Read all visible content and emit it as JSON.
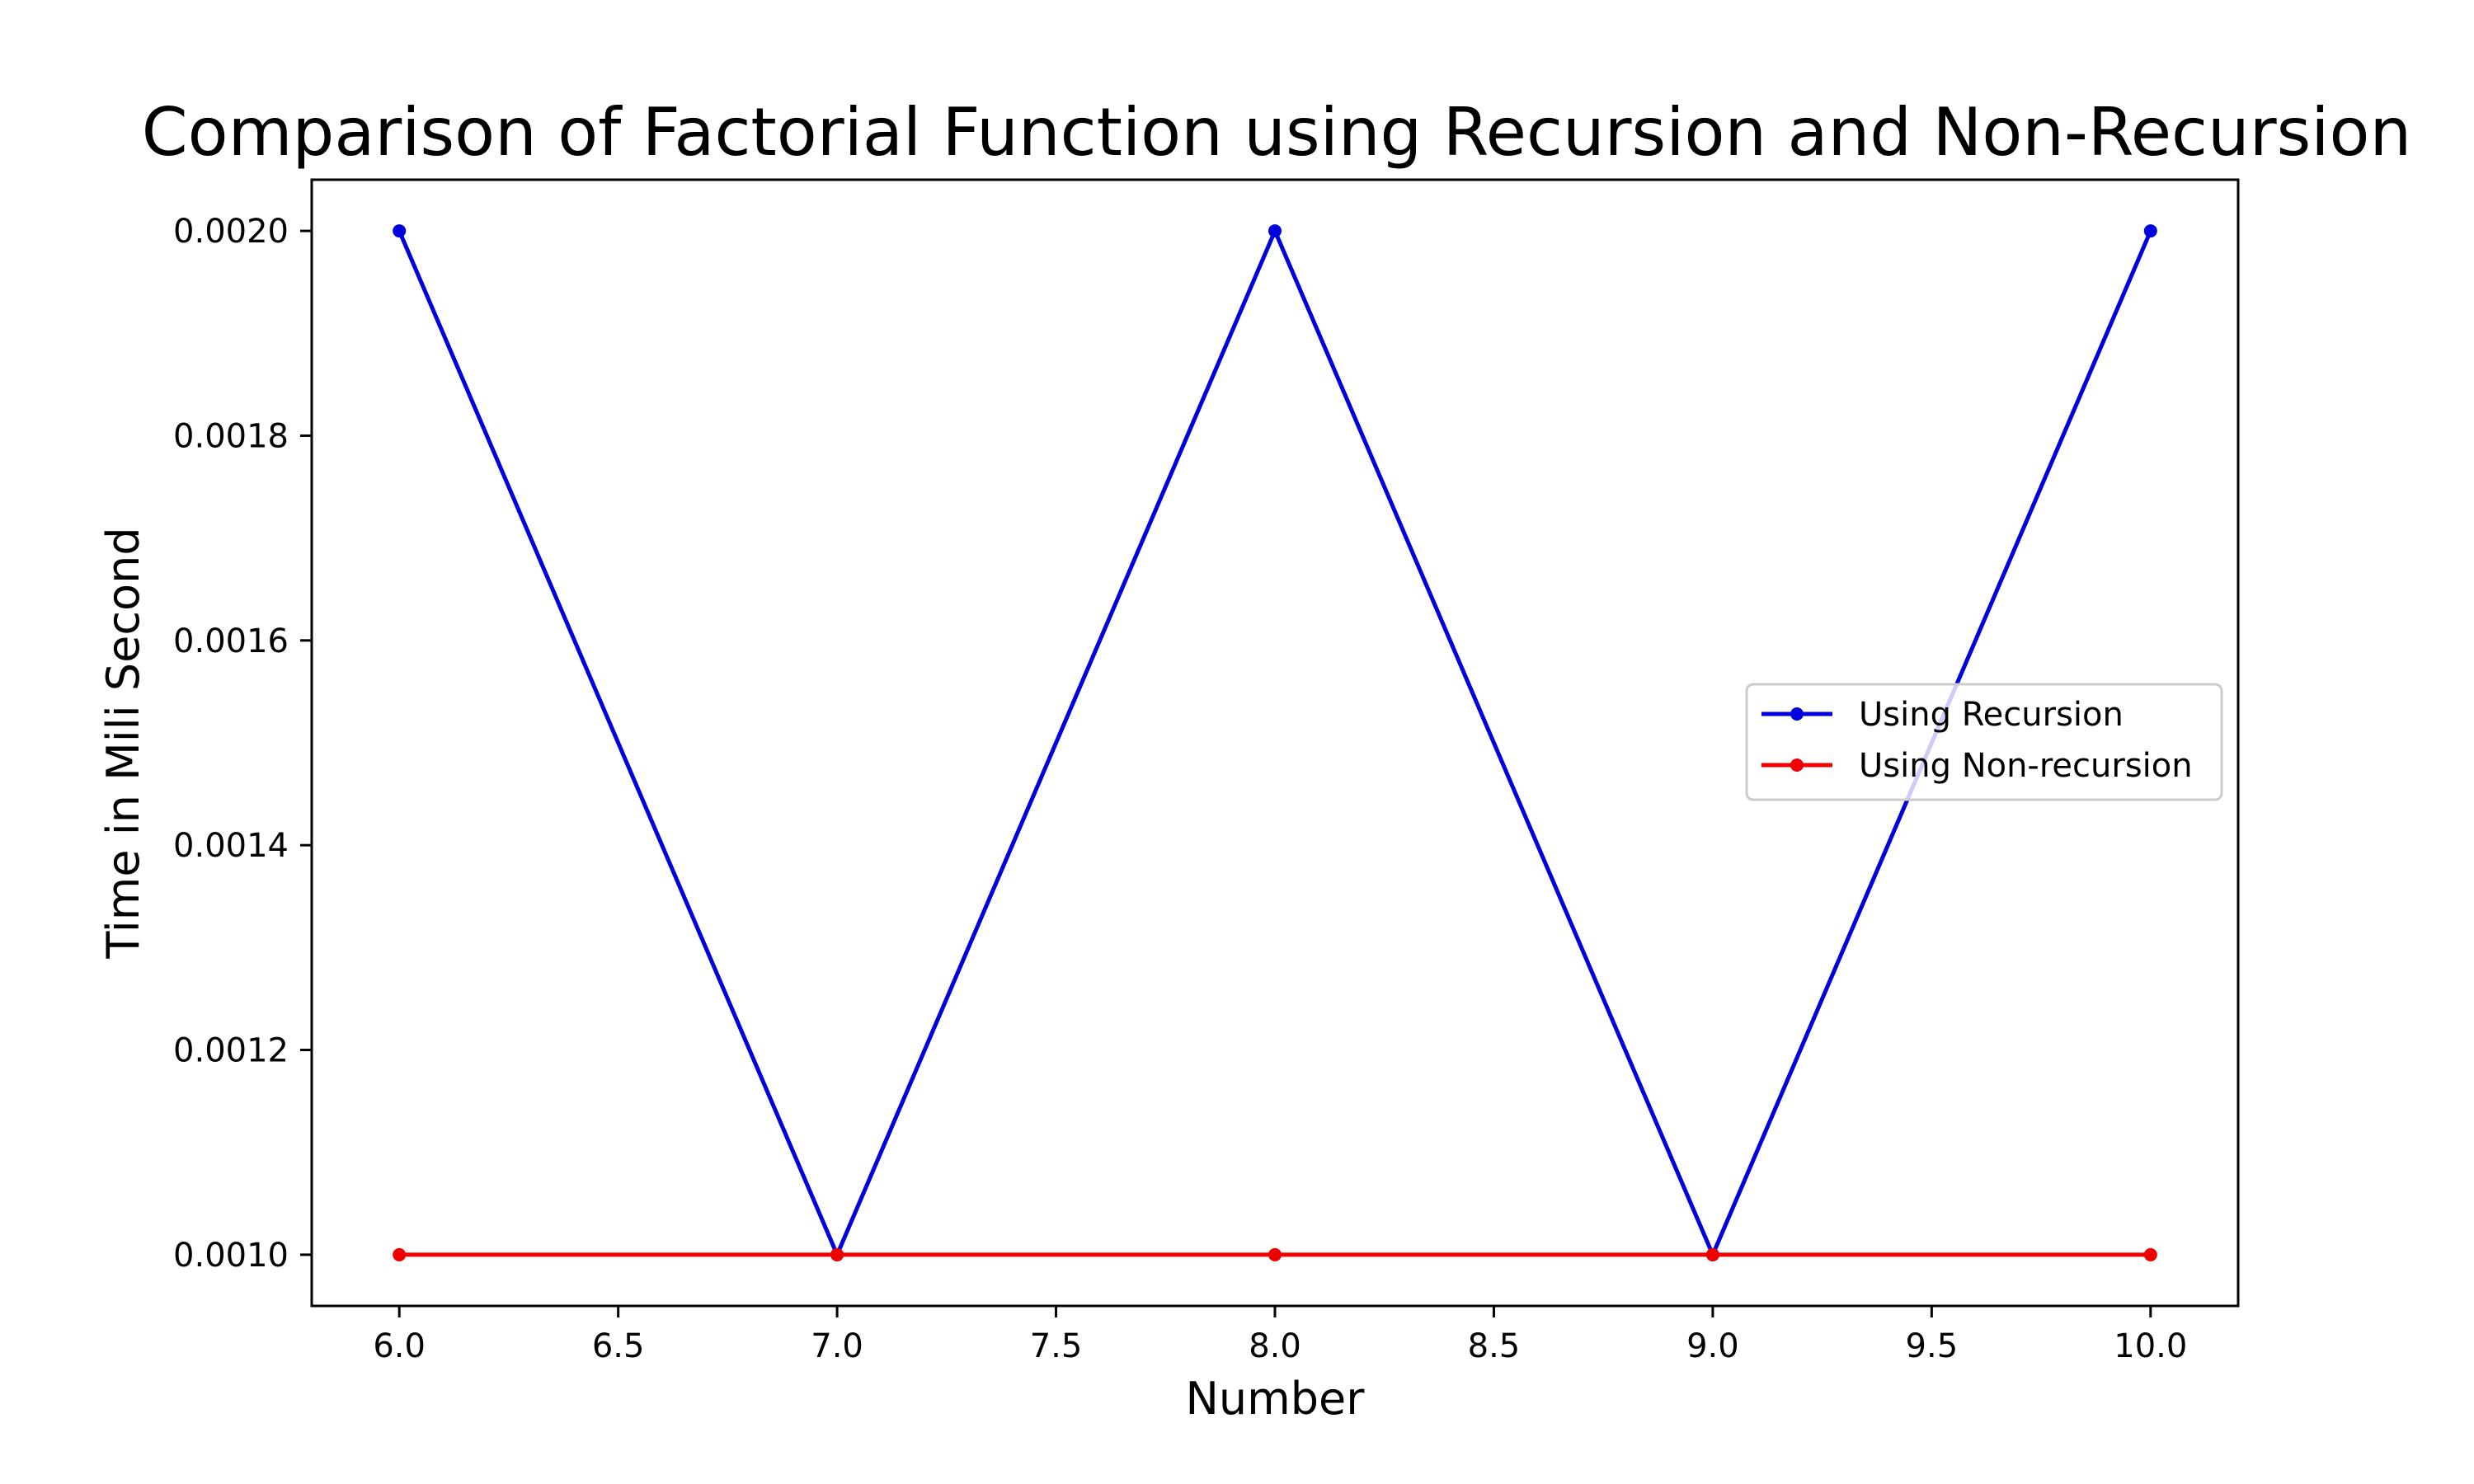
{
  "chart_data": {
    "type": "line",
    "title": "Comparison of Factorial Function using Recursion and Non-Recursion",
    "xlabel": "Number",
    "ylabel": "Time in Mili Second",
    "x": [
      6,
      7,
      8,
      9,
      10
    ],
    "xlim": [
      5.8,
      10.2
    ],
    "ylim": [
      0.00095,
      0.00205
    ],
    "xticks": [
      "6.0",
      "6.5",
      "7.0",
      "7.5",
      "8.0",
      "8.5",
      "9.0",
      "9.5",
      "10.0"
    ],
    "xtick_values": [
      6.0,
      6.5,
      7.0,
      7.5,
      8.0,
      8.5,
      9.0,
      9.5,
      10.0
    ],
    "yticks": [
      "0.0010",
      "0.0012",
      "0.0014",
      "0.0016",
      "0.0018",
      "0.0020"
    ],
    "ytick_values": [
      0.001,
      0.0012,
      0.0014,
      0.0016,
      0.0018,
      0.002
    ],
    "grid": false,
    "legend_position": "center-right",
    "series": [
      {
        "name": "Using Recursion",
        "values": [
          0.002,
          0.001,
          0.002,
          0.001,
          0.002
        ],
        "color": "#0000dd",
        "marker": "circle"
      },
      {
        "name": "Using Non-recursion",
        "values": [
          0.001,
          0.001,
          0.001,
          0.001,
          0.001
        ],
        "color": "#ee0000",
        "marker": "circle"
      }
    ]
  }
}
